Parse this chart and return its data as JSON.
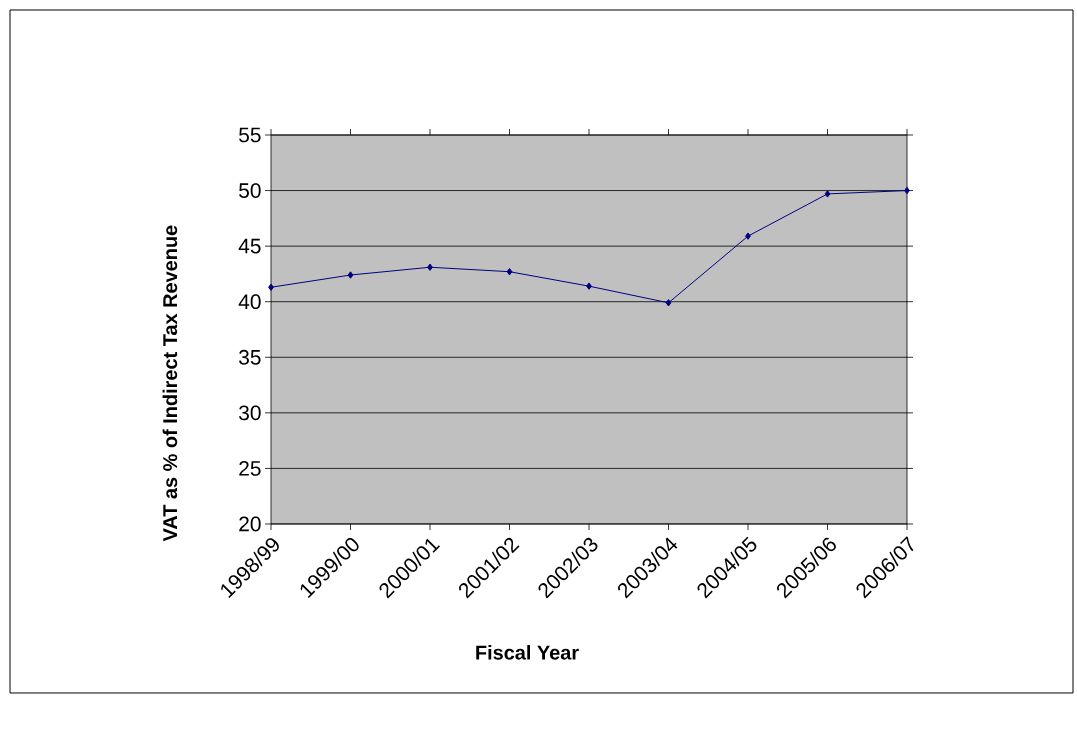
{
  "chart_data": {
    "type": "line",
    "xlabel": "Fiscal Year",
    "ylabel": "VAT as % of Indirect Tax Revenue",
    "categories": [
      "1998/99",
      "1999/00",
      "2000/01",
      "2001/02",
      "2002/03",
      "2003/04",
      "2004/05",
      "2005/06",
      "2006/07"
    ],
    "series": [
      {
        "color": "#000080",
        "values": [
          41.3,
          42.4,
          43.1,
          42.7,
          41.4,
          39.9,
          45.9,
          49.7,
          50.0
        ]
      }
    ],
    "ylim": [
      20,
      55
    ],
    "yticks": [
      20,
      25,
      30,
      35,
      40,
      45,
      50,
      55
    ],
    "grid": "y",
    "marker": "diamond",
    "line_style": "solid"
  }
}
